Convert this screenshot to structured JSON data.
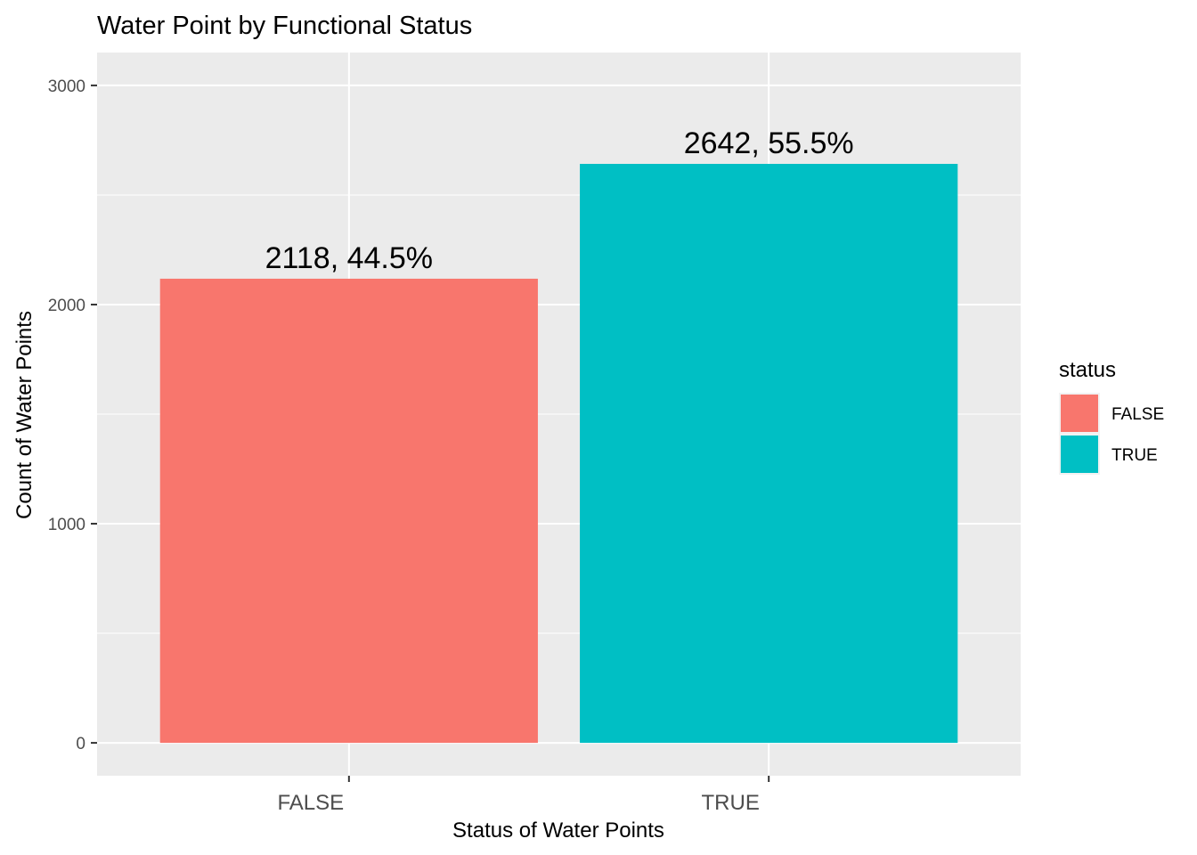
{
  "chart_data": {
    "type": "bar",
    "title": "Water Point by Functional Status",
    "xlabel": "Status of Water Points",
    "ylabel": "Count of Water Points",
    "categories": [
      "FALSE",
      "TRUE"
    ],
    "values": [
      2118,
      2642
    ],
    "data_labels": [
      "2118, 44.5%",
      "2642, 55.5%"
    ],
    "colors": [
      "#F8766D",
      "#00BFC4"
    ],
    "ylim": [
      -150,
      3150
    ],
    "y_ticks": [
      0,
      1000,
      2000,
      3000
    ],
    "y_tick_labels": [
      "0",
      "1000",
      "2000",
      "3000"
    ],
    "grid": true,
    "panel_background": "#EBEBEB",
    "legend": {
      "title": "status",
      "position": "right",
      "entries": [
        "FALSE",
        "TRUE"
      ]
    }
  }
}
